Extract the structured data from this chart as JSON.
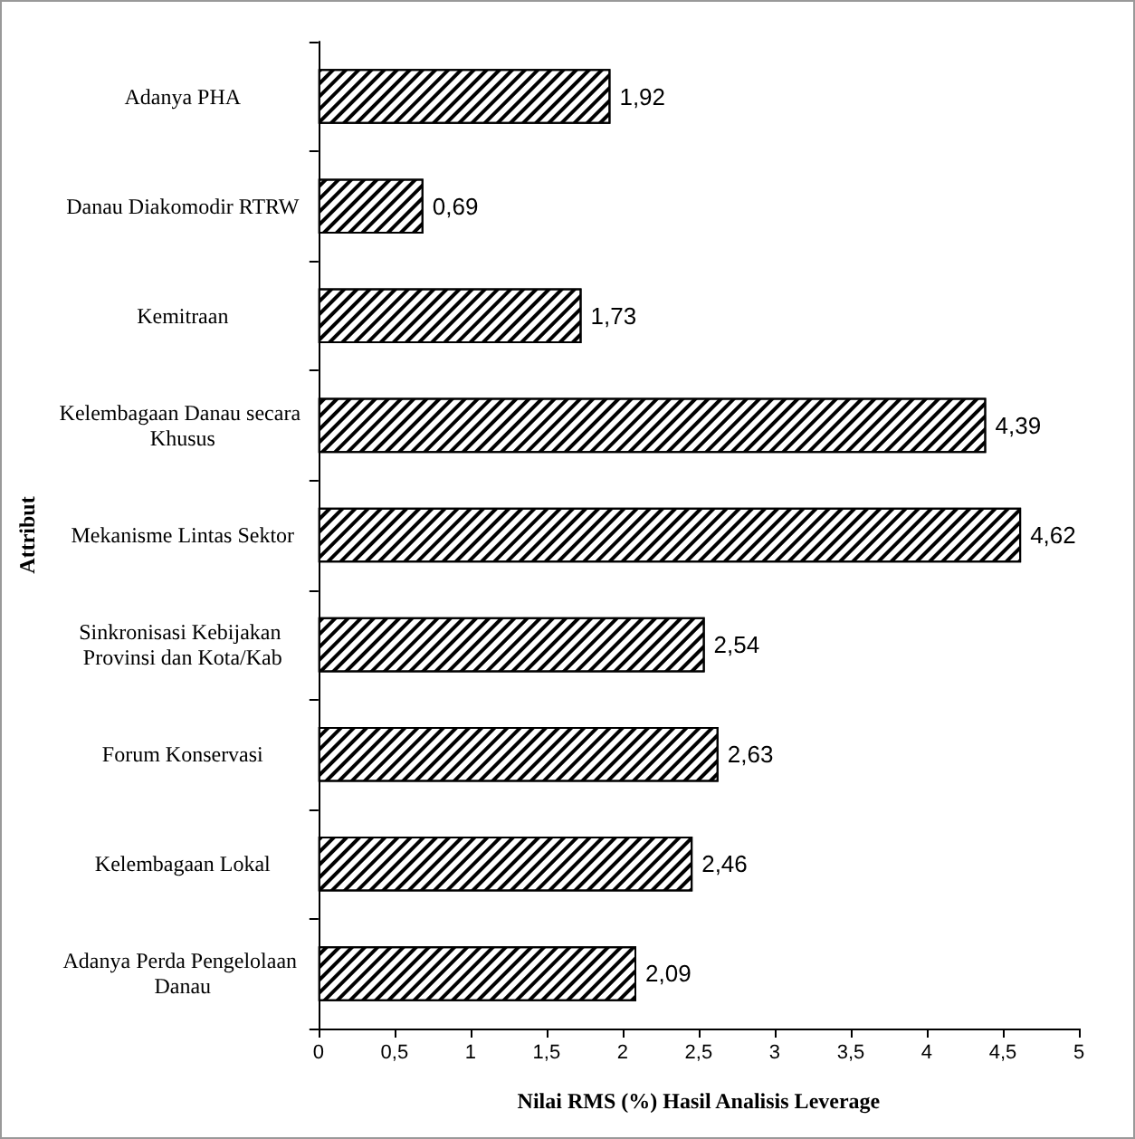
{
  "chart_data": {
    "type": "bar",
    "orientation": "horizontal",
    "xlabel": "Nilai RMS (%) Hasil Analisis Leverage",
    "ylabel": "Attribut",
    "categories": [
      "Adanya PHA",
      "Danau Diakomodir RTRW",
      "Kemitraan",
      "Kelembagaan Danau secara Khusus",
      "Mekanisme Lintas Sektor",
      "Sinkronisasi Kebijakan Provinsi dan Kota/Kab",
      "Forum Konservasi",
      "Kelembagaan Lokal",
      "Adanya Perda Pengelolaan Danau"
    ],
    "values": [
      1.92,
      0.69,
      1.73,
      4.39,
      4.62,
      2.54,
      2.63,
      2.46,
      2.09
    ],
    "value_labels": [
      "1,92",
      "0,69",
      "1,73",
      "4,39",
      "4,62",
      "2,54",
      "2,63",
      "2,46",
      "2,09"
    ],
    "color": "#000000",
    "xlim": [
      0,
      5
    ],
    "xticks": [
      0,
      {
        "value": 0.5,
        "label": "0,5"
      },
      1,
      {
        "value": 1.5,
        "label": "1,5"
      },
      2,
      {
        "value": 2.5,
        "label": "2,5"
      },
      3,
      {
        "value": 3.5,
        "label": "3,5"
      },
      4,
      {
        "value": 4.5,
        "label": "4,5"
      },
      5
    ],
    "grid": false
  }
}
